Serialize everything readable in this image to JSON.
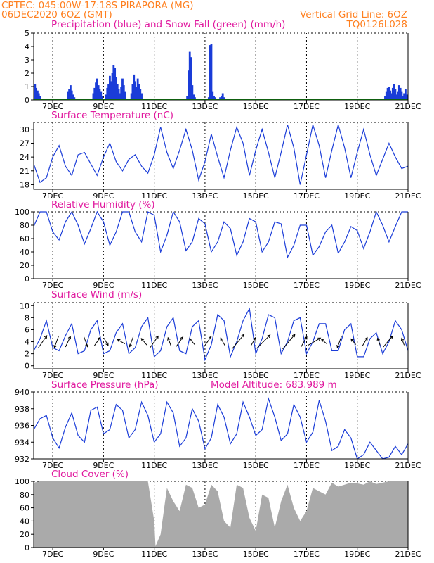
{
  "header": {
    "line1": "CPTEC:   045:00W-17:18S   PIRAPORA (MG)",
    "line2": "06DEC2020 6OZ (GMT)",
    "grid_note": "Vertical Grid Line: 6OZ",
    "model_code": "TQ0126L028"
  },
  "colors": {
    "header": "#ff7f1e",
    "title": "#e0189e",
    "line": "#1a3cd8",
    "bar": "#1a3cd8",
    "snow": "#1dbb1d",
    "cloud": "#aaaaaa"
  },
  "x_axis": {
    "start_day": 6.25,
    "end_day": 21.0,
    "tick_labels": [
      "7DEC",
      "9DEC",
      "11DEC",
      "13DEC",
      "15DEC",
      "17DEC",
      "19DEC",
      "21DEC"
    ],
    "tick_days": [
      7,
      9,
      11,
      13,
      15,
      17,
      19,
      21
    ]
  },
  "chart_data": [
    {
      "id": "precip",
      "type": "bar",
      "title": "Precipitation (blue) and Snow Fall (green) (mm/h)",
      "ylim": [
        0,
        5
      ],
      "yticks": [
        0,
        1,
        2,
        3,
        4,
        5
      ],
      "series": [
        {
          "name": "Precipitation",
          "x": [
            6.3,
            6.35,
            6.4,
            6.45,
            6.5,
            7.6,
            7.65,
            7.7,
            7.75,
            7.8,
            7.85,
            8.6,
            8.65,
            8.7,
            8.75,
            8.8,
            8.85,
            8.9,
            8.95,
            9.1,
            9.15,
            9.2,
            9.25,
            9.3,
            9.35,
            9.4,
            9.45,
            9.5,
            9.55,
            9.6,
            9.65,
            9.7,
            9.75,
            9.8,
            9.85,
            10.1,
            10.15,
            10.2,
            10.25,
            10.3,
            10.35,
            10.4,
            10.45,
            10.5,
            12.3,
            12.35,
            12.4,
            12.45,
            12.5,
            12.55,
            12.6,
            12.7,
            13.15,
            13.2,
            13.25,
            13.3,
            13.35,
            13.4,
            13.45,
            13.6,
            13.65,
            13.7,
            13.75,
            13.8,
            13.85,
            18.4,
            20.1,
            20.15,
            20.2,
            20.25,
            20.3,
            20.35,
            20.4,
            20.45,
            20.5,
            20.55,
            20.6,
            20.65,
            20.7,
            20.75,
            20.8,
            20.85,
            20.9,
            20.95
          ],
          "values": [
            1.2,
            0.9,
            0.7,
            0.5,
            0.3,
            0.6,
            0.8,
            1.1,
            0.7,
            0.4,
            0.2,
            0.5,
            0.9,
            1.3,
            1.6,
            1.1,
            0.8,
            0.6,
            0.3,
            0.4,
            0.9,
            1.2,
            1.8,
            1.4,
            2.0,
            2.6,
            2.4,
            1.7,
            1.2,
            0.8,
            0.5,
            1.0,
            1.6,
            1.1,
            0.6,
            0.5,
            1.2,
            1.9,
            1.4,
            1.0,
            1.6,
            1.2,
            0.8,
            0.5,
            0.3,
            2.2,
            3.6,
            3.2,
            1.1,
            0.4,
            0.2,
            0.1,
            0.2,
            4.1,
            4.2,
            0.6,
            0.3,
            0.2,
            0.1,
            0.2,
            0.3,
            0.5,
            0.2,
            0.1,
            0.1,
            0.1,
            0.3,
            0.6,
            0.9,
            1.0,
            0.7,
            0.5,
            0.9,
            1.2,
            0.8,
            0.4,
            0.6,
            1.1,
            0.9,
            0.6,
            0.3,
            0.5,
            0.8,
            0.4
          ]
        },
        {
          "name": "Snow Fall",
          "x": [
            6.25,
            21.0
          ],
          "values": [
            0,
            0
          ]
        }
      ]
    },
    {
      "id": "temp",
      "type": "line",
      "title": "Surface Temperature (nC)",
      "ylim": [
        17,
        31.5
      ],
      "yticks": [
        18,
        21,
        24,
        27,
        30
      ],
      "x": [
        6.25,
        6.5,
        6.75,
        7.0,
        7.25,
        7.5,
        7.75,
        8.0,
        8.25,
        8.5,
        8.75,
        9.0,
        9.25,
        9.5,
        9.75,
        10.0,
        10.25,
        10.5,
        10.75,
        11.0,
        11.25,
        11.5,
        11.75,
        12.0,
        12.25,
        12.5,
        12.75,
        13.0,
        13.25,
        13.5,
        13.75,
        14.0,
        14.25,
        14.5,
        14.75,
        15.0,
        15.25,
        15.5,
        15.75,
        16.0,
        16.25,
        16.5,
        16.75,
        17.0,
        17.25,
        17.5,
        17.75,
        18.0,
        18.25,
        18.5,
        18.75,
        19.0,
        19.25,
        19.5,
        19.75,
        20.0,
        20.25,
        20.5,
        20.75,
        21.0
      ],
      "values": [
        22.5,
        18.5,
        19.5,
        24.0,
        26.5,
        22.0,
        20.0,
        24.5,
        25.0,
        22.5,
        20.0,
        24.0,
        27.0,
        23.0,
        21.0,
        23.5,
        24.5,
        22.0,
        20.5,
        24.5,
        30.5,
        25.0,
        21.5,
        25.5,
        30.0,
        25.5,
        19.0,
        23.0,
        29.0,
        24.0,
        19.5,
        25.5,
        30.5,
        27.0,
        20.0,
        25.5,
        30.0,
        25.0,
        19.5,
        25.0,
        31.0,
        26.0,
        18.0,
        24.5,
        31.0,
        26.5,
        19.5,
        25.5,
        31.0,
        26.0,
        19.5,
        25.0,
        30.0,
        24.5,
        20.0,
        23.5,
        27.0,
        24.0,
        21.5,
        22.0
      ]
    },
    {
      "id": "rh",
      "type": "line",
      "title": "Relative Humidity (%)",
      "ylim": [
        0,
        100
      ],
      "yticks": [
        0,
        20,
        40,
        60,
        80,
        100
      ],
      "x": [
        6.25,
        6.5,
        6.75,
        7.0,
        7.25,
        7.5,
        7.75,
        8.0,
        8.25,
        8.5,
        8.75,
        9.0,
        9.25,
        9.5,
        9.75,
        10.0,
        10.25,
        10.5,
        10.75,
        11.0,
        11.25,
        11.5,
        11.75,
        12.0,
        12.25,
        12.5,
        12.75,
        13.0,
        13.25,
        13.5,
        13.75,
        14.0,
        14.25,
        14.5,
        14.75,
        15.0,
        15.25,
        15.5,
        15.75,
        16.0,
        16.25,
        16.5,
        16.75,
        17.0,
        17.25,
        17.5,
        17.75,
        18.0,
        18.25,
        18.5,
        18.75,
        19.0,
        19.25,
        19.5,
        19.75,
        20.0,
        20.25,
        20.5,
        20.75,
        21.0
      ],
      "values": [
        78,
        100,
        100,
        70,
        58,
        85,
        100,
        80,
        52,
        75,
        100,
        85,
        50,
        70,
        100,
        100,
        70,
        55,
        100,
        95,
        40,
        65,
        100,
        85,
        42,
        55,
        90,
        82,
        40,
        55,
        85,
        75,
        35,
        55,
        90,
        85,
        40,
        55,
        85,
        82,
        32,
        50,
        80,
        80,
        35,
        48,
        70,
        80,
        38,
        55,
        78,
        72,
        45,
        70,
        100,
        80,
        55,
        78,
        100,
        100
      ]
    },
    {
      "id": "wind",
      "type": "line",
      "title": "Surface Wind (m/s)",
      "ylim": [
        -0.5,
        10.5
      ],
      "yticks": [
        0,
        2,
        4,
        6,
        8,
        10
      ],
      "x": [
        6.25,
        6.5,
        6.75,
        7.0,
        7.25,
        7.5,
        7.75,
        8.0,
        8.25,
        8.5,
        8.75,
        9.0,
        9.25,
        9.5,
        9.75,
        10.0,
        10.25,
        10.5,
        10.75,
        11.0,
        11.25,
        11.5,
        11.75,
        12.0,
        12.25,
        12.5,
        12.75,
        13.0,
        13.25,
        13.5,
        13.75,
        14.0,
        14.25,
        14.5,
        14.75,
        15.0,
        15.25,
        15.5,
        15.75,
        16.0,
        16.25,
        16.5,
        16.75,
        17.0,
        17.25,
        17.5,
        17.75,
        18.0,
        18.25,
        18.5,
        18.75,
        19.0,
        19.25,
        19.5,
        19.75,
        20.0,
        20.25,
        20.5,
        20.75,
        21.0
      ],
      "values": [
        2.5,
        4.5,
        7.5,
        3.0,
        2.5,
        5.0,
        7.0,
        2.0,
        2.5,
        6.0,
        7.5,
        2.0,
        2.5,
        5.5,
        7.0,
        2.0,
        3.0,
        6.5,
        8.0,
        1.5,
        2.5,
        6.5,
        8.0,
        2.5,
        2.0,
        6.5,
        7.5,
        1.0,
        3.5,
        8.5,
        7.5,
        1.5,
        4.0,
        7.5,
        9.5,
        2.0,
        4.5,
        8.5,
        8.0,
        2.0,
        4.0,
        7.5,
        8.0,
        2.0,
        4.0,
        7.0,
        7.0,
        2.5,
        2.5,
        6.0,
        7.0,
        1.5,
        1.5,
        4.5,
        5.5,
        2.0,
        4.0,
        7.5,
        6.0,
        2.5
      ],
      "arrows": [
        {
          "day": 6.6,
          "dir_deg": 35,
          "speed": 5.0
        },
        {
          "day": 7.15,
          "dir_deg": 200,
          "speed": 4.0
        },
        {
          "day": 7.6,
          "dir_deg": 25,
          "speed": 3.5
        },
        {
          "day": 8.3,
          "dir_deg": 160,
          "speed": 3.0
        },
        {
          "day": 8.75,
          "dir_deg": 35,
          "speed": 3.0
        },
        {
          "day": 9.1,
          "dir_deg": 150,
          "speed": 2.0
        },
        {
          "day": 9.7,
          "dir_deg": 300,
          "speed": 2.0
        },
        {
          "day": 10.1,
          "dir_deg": 200,
          "speed": 3.0
        },
        {
          "day": 10.6,
          "dir_deg": 320,
          "speed": 2.0
        },
        {
          "day": 11.0,
          "dir_deg": 35,
          "speed": 4.5
        },
        {
          "day": 11.6,
          "dir_deg": 340,
          "speed": 2.0
        },
        {
          "day": 12.0,
          "dir_deg": 35,
          "speed": 3.5
        },
        {
          "day": 12.5,
          "dir_deg": 320,
          "speed": 2.0
        },
        {
          "day": 13.1,
          "dir_deg": 35,
          "speed": 4.0
        },
        {
          "day": 13.7,
          "dir_deg": 330,
          "speed": 2.0
        },
        {
          "day": 14.3,
          "dir_deg": 40,
          "speed": 7.0
        },
        {
          "day": 14.9,
          "dir_deg": 30,
          "speed": 2.5
        },
        {
          "day": 15.3,
          "dir_deg": 45,
          "speed": 7.0
        },
        {
          "day": 16.3,
          "dir_deg": 40,
          "speed": 7.0
        },
        {
          "day": 16.9,
          "dir_deg": 30,
          "speed": 3.5
        },
        {
          "day": 17.3,
          "dir_deg": 60,
          "speed": 5.0
        },
        {
          "day": 17.7,
          "dir_deg": 310,
          "speed": 1.5
        },
        {
          "day": 18.3,
          "dir_deg": 200,
          "speed": 4.0
        },
        {
          "day": 18.85,
          "dir_deg": 320,
          "speed": 1.5
        },
        {
          "day": 19.3,
          "dir_deg": 30,
          "speed": 2.5
        },
        {
          "day": 19.85,
          "dir_deg": 340,
          "speed": 1.5
        },
        {
          "day": 20.2,
          "dir_deg": 40,
          "speed": 5.0
        },
        {
          "day": 20.8,
          "dir_deg": 340,
          "speed": 1.5
        }
      ]
    },
    {
      "id": "pressure",
      "type": "line",
      "title": "Surface Pressure (hPa)",
      "subtitle": "Model Altitude: 683.989  m",
      "ylim": [
        932,
        940
      ],
      "yticks": [
        932,
        934,
        936,
        938,
        940
      ],
      "x": [
        6.25,
        6.5,
        6.75,
        7.0,
        7.25,
        7.5,
        7.75,
        8.0,
        8.25,
        8.5,
        8.75,
        9.0,
        9.25,
        9.5,
        9.75,
        10.0,
        10.25,
        10.5,
        10.75,
        11.0,
        11.25,
        11.5,
        11.75,
        12.0,
        12.25,
        12.5,
        12.75,
        13.0,
        13.25,
        13.5,
        13.75,
        14.0,
        14.25,
        14.5,
        14.75,
        15.0,
        15.25,
        15.5,
        15.75,
        16.0,
        16.25,
        16.5,
        16.75,
        17.0,
        17.25,
        17.5,
        17.75,
        18.0,
        18.25,
        18.5,
        18.75,
        19.0,
        19.25,
        19.5,
        19.75,
        20.0,
        20.25,
        20.5,
        20.75,
        21.0
      ],
      "values": [
        935.5,
        936.8,
        937.2,
        934.5,
        933.3,
        935.8,
        937.5,
        934.8,
        934.0,
        937.8,
        938.2,
        935.0,
        935.5,
        938.5,
        937.8,
        934.5,
        935.5,
        938.8,
        937.2,
        934.0,
        935.0,
        938.8,
        937.5,
        933.5,
        934.5,
        938.0,
        936.5,
        933.2,
        934.5,
        938.5,
        937.0,
        933.8,
        935.0,
        938.8,
        937.0,
        934.8,
        935.5,
        939.2,
        937.0,
        934.2,
        935.0,
        938.5,
        937.0,
        934.0,
        935.2,
        939.0,
        936.5,
        933.0,
        933.5,
        935.5,
        934.5,
        932.0,
        932.5,
        934.0,
        933.0,
        931.8,
        932.2,
        933.5,
        932.5,
        933.8
      ]
    },
    {
      "id": "cloud",
      "type": "area",
      "title": "Cloud Cover (%)",
      "ylim": [
        0,
        100
      ],
      "yticks": [
        0,
        20,
        40,
        60,
        80,
        100
      ],
      "x": [
        6.25,
        6.5,
        6.75,
        7.0,
        7.25,
        7.5,
        7.75,
        8.0,
        8.25,
        8.5,
        8.75,
        9.0,
        9.25,
        9.5,
        9.75,
        10.0,
        10.25,
        10.5,
        10.75,
        11.0,
        11.05,
        11.25,
        11.5,
        11.75,
        12.0,
        12.25,
        12.5,
        12.75,
        13.0,
        13.25,
        13.5,
        13.75,
        14.0,
        14.25,
        14.5,
        14.75,
        15.0,
        15.25,
        15.5,
        15.75,
        16.0,
        16.25,
        16.5,
        16.75,
        17.0,
        17.25,
        17.5,
        17.75,
        18.0,
        18.25,
        18.5,
        18.75,
        19.0,
        19.25,
        19.5,
        19.75,
        20.0,
        20.25,
        20.5,
        20.75,
        21.0
      ],
      "values": [
        98,
        100,
        100,
        100,
        100,
        100,
        100,
        100,
        100,
        100,
        100,
        100,
        100,
        100,
        100,
        100,
        100,
        100,
        100,
        40,
        2,
        20,
        90,
        70,
        55,
        95,
        90,
        60,
        65,
        95,
        85,
        40,
        30,
        95,
        90,
        45,
        25,
        80,
        75,
        30,
        70,
        95,
        60,
        40,
        55,
        90,
        85,
        80,
        98,
        92,
        95,
        98,
        97,
        95,
        100,
        96,
        98,
        100,
        100,
        100,
        100
      ]
    }
  ]
}
